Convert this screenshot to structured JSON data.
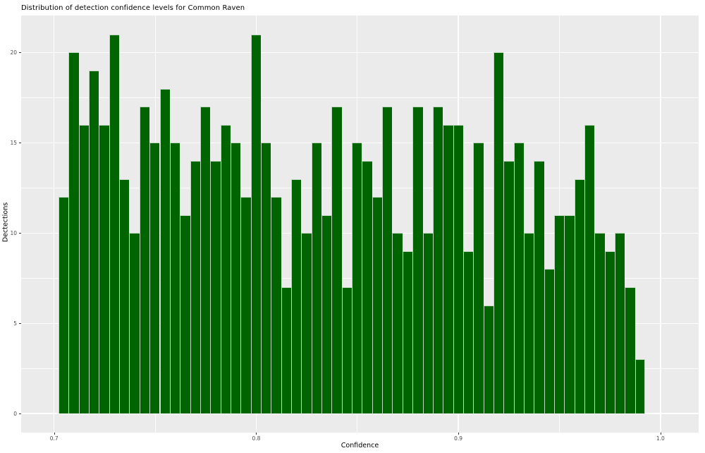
{
  "title": "Distribution of detection confidence levels for Common Raven",
  "chart_data": {
    "type": "bar",
    "subtype": "histogram",
    "title": "Distribution of detection confidence levels for Common Raven",
    "xlabel": "Confidence",
    "ylabel": "Dectections",
    "bin_start": 0.7022,
    "bin_width": 0.005004,
    "values": [
      12,
      20,
      16,
      19,
      16,
      21,
      13,
      10,
      17,
      15,
      18,
      15,
      11,
      14,
      17,
      14,
      16,
      15,
      12,
      21,
      15,
      12,
      7,
      13,
      10,
      15,
      11,
      17,
      7,
      15,
      14,
      12,
      17,
      10,
      9,
      17,
      10,
      17,
      16,
      16,
      9,
      15,
      6,
      20,
      14,
      15,
      10,
      14,
      8,
      11,
      11,
      13,
      16,
      10,
      9,
      10,
      7,
      3
    ],
    "x_tick_values": [
      0.7,
      0.8,
      0.9,
      1.0
    ],
    "x_tick_labels": [
      "0.7",
      "0.8",
      "0.9",
      "1.0"
    ],
    "x_minor_tick_values": [
      0.75,
      0.85,
      0.95
    ],
    "y_tick_values": [
      0,
      5,
      10,
      15,
      20
    ],
    "y_tick_labels": [
      "0",
      "5",
      "10",
      "15",
      "20"
    ],
    "y_minor_tick_values": [
      2.5,
      7.5,
      12.5,
      17.5
    ],
    "xlim": [
      0.6837,
      1.0189
    ],
    "ylim": [
      -1.05,
      22.05
    ],
    "grid": "major-and-minor",
    "legend": false,
    "colors": {
      "bar_fill": "#006400",
      "bar_edge": "#ffffff",
      "panel_bg": "#ebebeb",
      "grid": "#ffffff",
      "tick_mark": "#333333",
      "tick_label": "#4d4d4d",
      "text": "#000000",
      "figure_bg": "#ffffff"
    }
  }
}
